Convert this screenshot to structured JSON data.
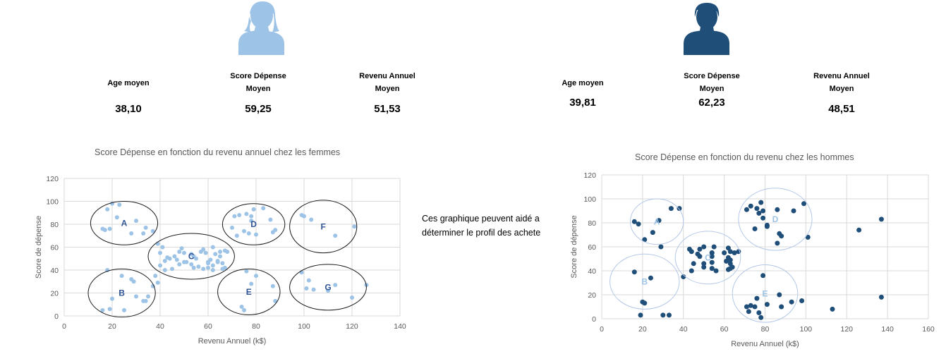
{
  "colors": {
    "female": "#9DC3E6",
    "male": "#1F4E79",
    "female_cluster_line": "#1a1a1a",
    "male_cluster_line": "#B4C7E7",
    "female_cluster_label": "#2F5597",
    "male_cluster_label": "#9DC3E6"
  },
  "icons": {
    "female": "woman-avatar-icon",
    "male": "man-avatar-icon"
  },
  "female_stats": {
    "age": {
      "label": "Age moyen",
      "value": "38,10"
    },
    "score": {
      "label1": "Score Dépense",
      "label2": "Moyen",
      "value": "59,25"
    },
    "income": {
      "label1": "Revenu Annuel",
      "label2": "Moyen",
      "value": "51,53"
    }
  },
  "male_stats": {
    "age": {
      "label": "Age moyen",
      "value": "39,81"
    },
    "score": {
      "label1": "Score Dépense",
      "label2": "Moyen",
      "value": "62,23"
    },
    "income": {
      "label1": "Revenu Annuel",
      "label2": "Moyen",
      "value": "48,51"
    }
  },
  "note": {
    "line1": "Ces graphique peuvent aidé a",
    "line2": "déterminer le profil des achete"
  },
  "chart_data": [
    {
      "type": "scatter",
      "title": "Score Dépense en fonction du revenu annuel chez les femmes",
      "xlabel": "Revenu Annuel (k$)",
      "ylabel": "Score de dépense",
      "xlim": [
        0,
        140
      ],
      "ylim": [
        0,
        120
      ],
      "xticks": [
        0,
        20,
        40,
        60,
        80,
        100,
        120,
        140
      ],
      "yticks": [
        0,
        20,
        40,
        60,
        80,
        100,
        120
      ],
      "grid": true,
      "clusters": [
        {
          "label": "A",
          "cx": 25,
          "cy": 81,
          "rx": 14,
          "ry": 19
        },
        {
          "label": "B",
          "cx": 24,
          "cy": 20,
          "rx": 14,
          "ry": 21
        },
        {
          "label": "C",
          "cx": 53,
          "cy": 52,
          "rx": 18,
          "ry": 20
        },
        {
          "label": "D",
          "cx": 79,
          "cy": 80,
          "rx": 13,
          "ry": 18
        },
        {
          "label": "E",
          "cx": 77,
          "cy": 21,
          "rx": 13,
          "ry": 20
        },
        {
          "label": "F",
          "cx": 108,
          "cy": 78,
          "rx": 14,
          "ry": 23
        },
        {
          "label": "G",
          "cx": 110,
          "cy": 25,
          "rx": 16,
          "ry": 20
        }
      ],
      "x": [
        16,
        17,
        18,
        19,
        20,
        22,
        23,
        28,
        30,
        33,
        34,
        37,
        20,
        25,
        28,
        29,
        33,
        35,
        38,
        16,
        18,
        19,
        24,
        30,
        34,
        37,
        39,
        40,
        41,
        42,
        42,
        43,
        44,
        46,
        47,
        48,
        49,
        50,
        51,
        53,
        54,
        54,
        55,
        57,
        58,
        59,
        60,
        60,
        61,
        62,
        62,
        63,
        64,
        65,
        65,
        66,
        67,
        67,
        39,
        40,
        45,
        48,
        50,
        53,
        56,
        58,
        60,
        62,
        64,
        66,
        68,
        70,
        71,
        72,
        73,
        75,
        76,
        77,
        78,
        78,
        79,
        80,
        83,
        86,
        87,
        88,
        74,
        75,
        76,
        78,
        80,
        87,
        88,
        99,
        100,
        103,
        113,
        121,
        102,
        99,
        101,
        104,
        110,
        113,
        120,
        126
      ],
      "y": [
        76,
        75,
        93,
        76,
        98,
        86,
        97,
        72,
        83,
        72,
        77,
        74,
        15,
        5,
        32,
        30,
        13,
        17,
        35,
        5,
        40,
        6,
        35,
        17,
        13,
        26,
        29,
        55,
        60,
        48,
        40,
        51,
        50,
        52,
        49,
        56,
        59,
        55,
        47,
        54,
        42,
        52,
        50,
        56,
        58,
        55,
        42,
        47,
        49,
        60,
        44,
        54,
        47,
        52,
        56,
        46,
        57,
        42,
        63,
        44,
        41,
        45,
        47,
        45,
        43,
        41,
        46,
        40,
        48,
        41,
        56,
        77,
        87,
        70,
        88,
        74,
        89,
        72,
        87,
        83,
        93,
        71,
        94,
        84,
        73,
        75,
        8,
        5,
        39,
        28,
        35,
        26,
        13,
        88,
        87,
        84,
        70,
        78,
        31,
        38,
        24,
        23,
        22,
        27,
        16,
        27
      ]
    },
    {
      "type": "scatter",
      "title": "Score Dépense en fonction du revenu chez les hommes",
      "xlabel": "Revenu Annuel (k$)",
      "ylabel": "Score de dépense",
      "xlim": [
        0,
        160
      ],
      "ylim": [
        0,
        120
      ],
      "xticks": [
        0,
        20,
        40,
        60,
        80,
        100,
        120,
        140,
        160
      ],
      "yticks": [
        0,
        20,
        40,
        60,
        80,
        100,
        120
      ],
      "grid": true,
      "clusters": [
        {
          "label": "A",
          "cx": 27,
          "cy": 81,
          "rx": 13,
          "ry": 19
        },
        {
          "label": "B",
          "cx": 21,
          "cy": 31,
          "rx": 17,
          "ry": 23
        },
        {
          "label": "C",
          "cx": 52,
          "cy": 51,
          "rx": 16,
          "ry": 22
        },
        {
          "label": "D",
          "cx": 85,
          "cy": 83,
          "rx": 18,
          "ry": 26
        },
        {
          "label": "E",
          "cx": 80,
          "cy": 21,
          "rx": 16,
          "ry": 24
        }
      ],
      "x": [
        16,
        18,
        21,
        25,
        28,
        29,
        34,
        38,
        16,
        19,
        20,
        21,
        24,
        30,
        33,
        40,
        43,
        44,
        44,
        45,
        47,
        48,
        48,
        50,
        50,
        50,
        54,
        54,
        54,
        54,
        54,
        55,
        56,
        60,
        61,
        62,
        62,
        62,
        63,
        63,
        63,
        63,
        64,
        65,
        67,
        71,
        73,
        75,
        76,
        77,
        78,
        79,
        79,
        81,
        81,
        86,
        86,
        87,
        88,
        94,
        99,
        101,
        126,
        137,
        71,
        72,
        73,
        75,
        76,
        77,
        78,
        79,
        81,
        87,
        88,
        93,
        98,
        113,
        137
      ],
      "y": [
        81,
        79,
        66,
        72,
        82,
        60,
        92,
        92,
        39,
        3,
        14,
        13,
        34,
        3,
        3,
        35,
        58,
        56,
        40,
        46,
        54,
        52,
        58,
        46,
        60,
        43,
        55,
        52,
        55,
        47,
        42,
        60,
        40,
        55,
        48,
        41,
        59,
        51,
        49,
        56,
        46,
        42,
        43,
        55,
        56,
        91,
        94,
        75,
        92,
        88,
        97,
        84,
        90,
        77,
        78,
        91,
        63,
        71,
        69,
        90,
        96,
        68,
        74,
        83,
        10,
        6,
        11,
        10,
        17,
        5,
        1,
        36,
        12,
        20,
        10,
        14,
        15,
        8,
        18
      ]
    }
  ]
}
